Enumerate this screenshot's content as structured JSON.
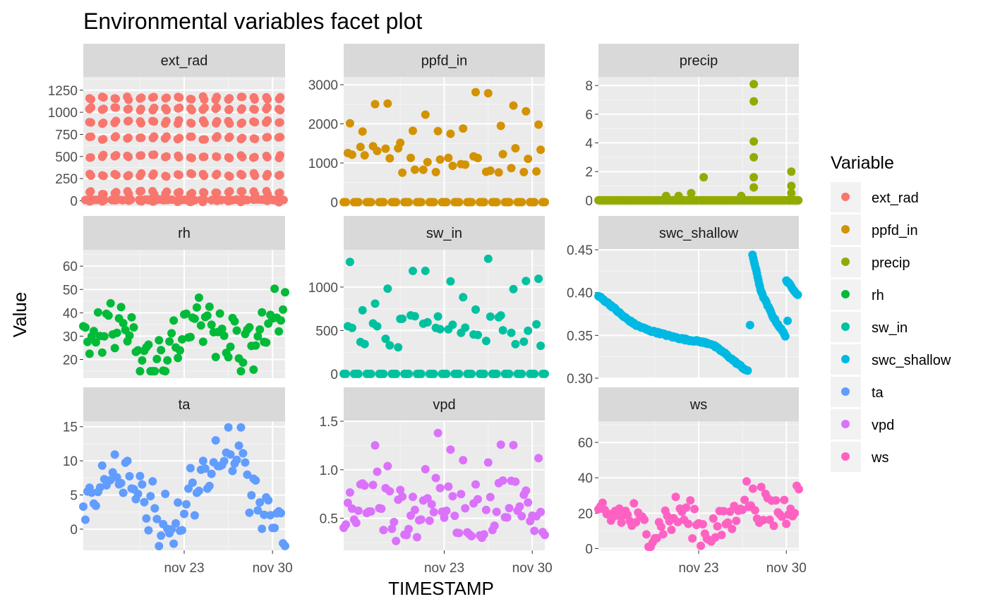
{
  "chart_data": {
    "type": "scatter",
    "title": "Environmental variables facet plot",
    "xlabel": "TIMESTAMP",
    "ylabel": "Value",
    "legend_title": "Variable",
    "legend_position": "right",
    "x_range": [
      "2024-11-15",
      "2024-12-01"
    ],
    "x_ticks": [
      {
        "date": "2024-11-23",
        "label": "nov 23"
      },
      {
        "date": "2024-11-30",
        "label": "nov 30"
      }
    ],
    "grid": true,
    "series": [
      {
        "name": "ext_rad",
        "color": "#F8766D",
        "ylim": [
          -60,
          1400
        ],
        "yticks": [
          0,
          250,
          500,
          750,
          1000,
          1250
        ],
        "summary": {
          "min": 0,
          "max": 1180,
          "pattern": "daily solar cycle, hourly levels 0-1180"
        }
      },
      {
        "name": "ppfd_in",
        "color": "#D39200",
        "ylim": [
          -100,
          3200
        ],
        "yticks": [
          0,
          1000,
          2000,
          3000
        ],
        "summary": {
          "min": 0,
          "max": 2880,
          "pattern": "daily cycle, daytime peaks 1500-2900"
        }
      },
      {
        "name": "precip",
        "color": "#93AA00",
        "ylim": [
          -0.4,
          8.6
        ],
        "yticks": [
          0,
          2,
          4,
          6,
          8
        ],
        "points": [
          [
            "2024-11-20",
            0.3
          ],
          [
            "2024-11-21",
            0.3
          ],
          [
            "2024-11-22",
            0.5
          ],
          [
            "2024-11-23",
            1.6
          ],
          [
            "2024-11-26",
            0.3
          ],
          [
            "2024-11-27",
            8.1
          ],
          [
            "2024-11-27",
            6.9
          ],
          [
            "2024-11-27",
            4.1
          ],
          [
            "2024-11-27",
            3.0
          ],
          [
            "2024-11-27",
            1.6
          ],
          [
            "2024-11-27",
            0.9
          ],
          [
            "2024-11-30",
            2.0
          ],
          [
            "2024-11-30",
            1.0
          ],
          [
            "2024-11-30",
            0.5
          ]
        ],
        "summary": {
          "baseline": 0
        }
      },
      {
        "name": "rh",
        "color": "#00BA38",
        "ylim": [
          12,
          67
        ],
        "yticks": [
          20,
          30,
          40,
          50,
          60
        ],
        "summary": {
          "min": 15,
          "max": 64
        }
      },
      {
        "name": "sw_in",
        "color": "#00C19F",
        "ylim": [
          -50,
          1430
        ],
        "yticks": [
          0,
          500,
          1000
        ],
        "summary": {
          "min": 0,
          "max": 1350
        }
      },
      {
        "name": "swc_shallow",
        "color": "#00B9E3",
        "ylim": [
          0.3,
          0.45
        ],
        "yticks": [
          0.3,
          0.35,
          0.4,
          0.45
        ],
        "tick_labels": [
          "0.30",
          "0.35",
          "0.40",
          "0.45"
        ],
        "points": [
          [
            "2024-11-15",
            0.396
          ],
          [
            "2024-11-16",
            0.385
          ],
          [
            "2024-11-17",
            0.372
          ],
          [
            "2024-11-18",
            0.362
          ],
          [
            "2024-11-19",
            0.356
          ],
          [
            "2024-11-20",
            0.352
          ],
          [
            "2024-11-21",
            0.348
          ],
          [
            "2024-11-22",
            0.345
          ],
          [
            "2024-11-23",
            0.343
          ],
          [
            "2024-11-24",
            0.34
          ],
          [
            "2024-11-25",
            0.33
          ],
          [
            "2024-11-26",
            0.318
          ],
          [
            "2024-11-27",
            0.307
          ],
          [
            "2024-11-27",
            0.444
          ],
          [
            "2024-11-28",
            0.4
          ],
          [
            "2024-11-29",
            0.37
          ],
          [
            "2024-11-30",
            0.348
          ],
          [
            "2024-11-30",
            0.414
          ],
          [
            "2024-12-01",
            0.396
          ]
        ],
        "summary": {
          "min": 0.306,
          "max": 0.445
        }
      },
      {
        "name": "ta",
        "color": "#619CFF",
        "ylim": [
          -3.1,
          15.8
        ],
        "yticks": [
          0,
          5,
          10,
          15
        ],
        "summary": {
          "min": -2.5,
          "max": 14.9
        }
      },
      {
        "name": "vpd",
        "color": "#DB72FB",
        "ylim": [
          0.17,
          1.5
        ],
        "yticks": [
          0.5,
          1.0,
          1.5
        ],
        "tick_labels": [
          "0.5",
          "1.0",
          "1.5"
        ],
        "summary": {
          "min": 0.22,
          "max": 1.45
        }
      },
      {
        "name": "ws",
        "color": "#FF61C3",
        "ylim": [
          -1,
          72
        ],
        "yticks": [
          0,
          20,
          40,
          60
        ],
        "summary": {
          "min": 1,
          "max": 69
        }
      }
    ]
  }
}
